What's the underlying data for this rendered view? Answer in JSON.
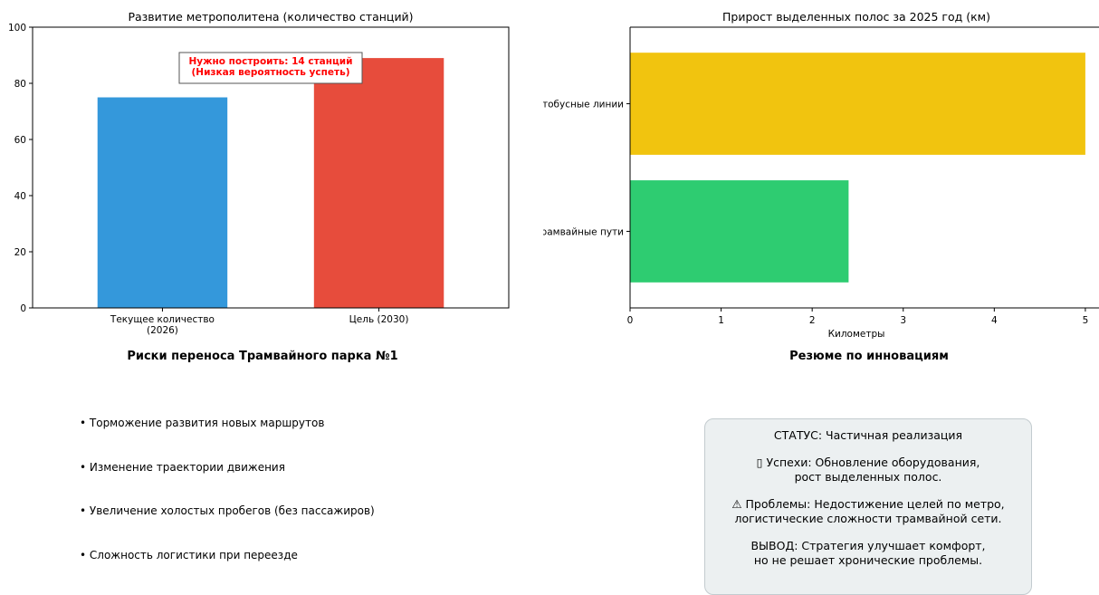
{
  "charts_text": {
    "metro_title": "Развитие метрополитена (количество станций)",
    "metro_annotation": "Нужно построить: 14 станций\n(Низкая вероятность успеть)",
    "lanes_title": "Прирост выделенных полос за 2025 год (км)",
    "lanes_xlabel": "Километры"
  },
  "chart_data": [
    {
      "type": "bar",
      "title": "Развитие метрополитена (количество станций)",
      "categories": [
        "Текущее количество\n(2026)",
        "Цель (2030)"
      ],
      "values": [
        75,
        89
      ],
      "colors": [
        "#3498db",
        "#e74c3c"
      ],
      "ylim": [
        0,
        100
      ],
      "yticks": [
        0,
        20,
        40,
        60,
        80,
        100
      ],
      "annotation": "Нужно построить: 14 станций\n(Низкая вероятность успеть)",
      "annotation_color": "#ff0000",
      "grid": false
    },
    {
      "type": "bar",
      "orientation": "horizontal",
      "title": "Прирост выделенных полос за 2025 год (км)",
      "categories": [
        "Автобусные линии",
        "Трамвайные пути"
      ],
      "values": [
        5.0,
        2.4
      ],
      "colors": [
        "#f1c40f",
        "#2ecc71"
      ],
      "xlabel": "Километры",
      "xlim": [
        0,
        5.15
      ],
      "xticks": [
        0,
        1,
        2,
        3,
        4,
        5
      ],
      "grid": false
    }
  ],
  "risks": {
    "title": "Риски переноса Трамвайного парка №1",
    "items": [
      "• Торможение развития новых маршрутов",
      "• Изменение траектории движения",
      "• Увеличение холостых пробегов (без пассажиров)",
      "• Сложность логистики при переезде"
    ]
  },
  "summary": {
    "title": "Резюме по инновациям",
    "status": "СТАТУС: Частичная реализация",
    "successes": "▯ Успехи: Обновление оборудования,\nрост выделенных полос.",
    "problems": "⚠ Проблемы: Недостижение целей по метро,\nлогистические сложности трамвайной сети.",
    "conclusion": "ВЫВОД: Стратегия улучшает комфорт,\nно не решает хронические проблемы."
  }
}
